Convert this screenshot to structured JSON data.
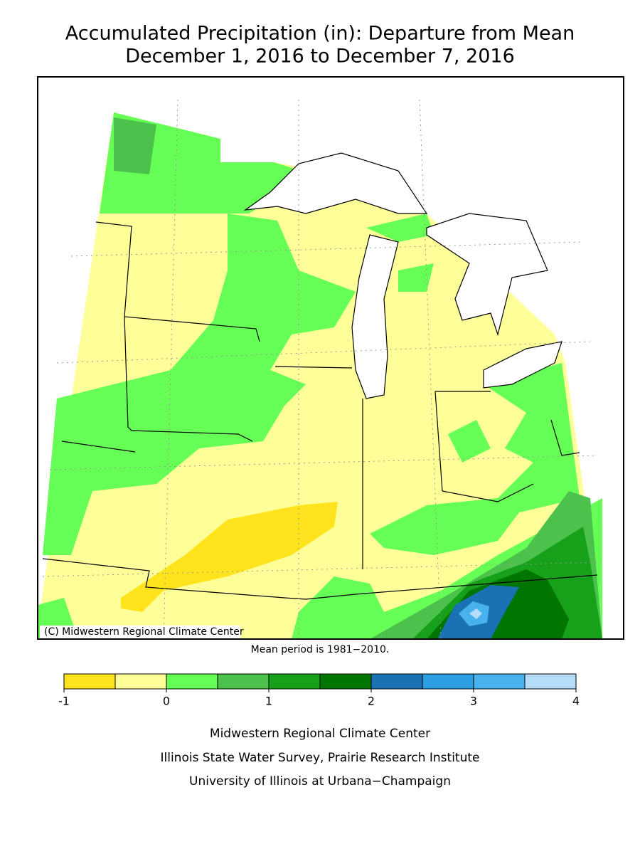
{
  "header": {
    "title": "Accumulated Precipitation (in): Departure from Mean",
    "subtitle": "December 1, 2016 to December 7, 2016"
  },
  "map": {
    "copyright": "(C) Midwestern Regional Climate Center",
    "note": "Mean period is 1981−2010."
  },
  "colorbar": {
    "bounds": [
      -1,
      -0.5,
      0,
      0.5,
      1,
      1.5,
      2,
      2.5,
      3,
      3.5,
      4
    ],
    "colors": [
      "#ffe31c",
      "#ffff99",
      "#66ff55",
      "#4cc24c",
      "#17a11a",
      "#007600",
      "#1a72b5",
      "#2e9ee2",
      "#47b2ee",
      "#b5dcf8"
    ],
    "ticks": [
      -1,
      0,
      1,
      2,
      3,
      4
    ]
  },
  "footer": {
    "lines": [
      "Midwestern Regional Climate Center",
      "Illinois State Water Survey, Prairie Research Institute",
      "University of Illinois at Urbana−Champaign"
    ]
  }
}
